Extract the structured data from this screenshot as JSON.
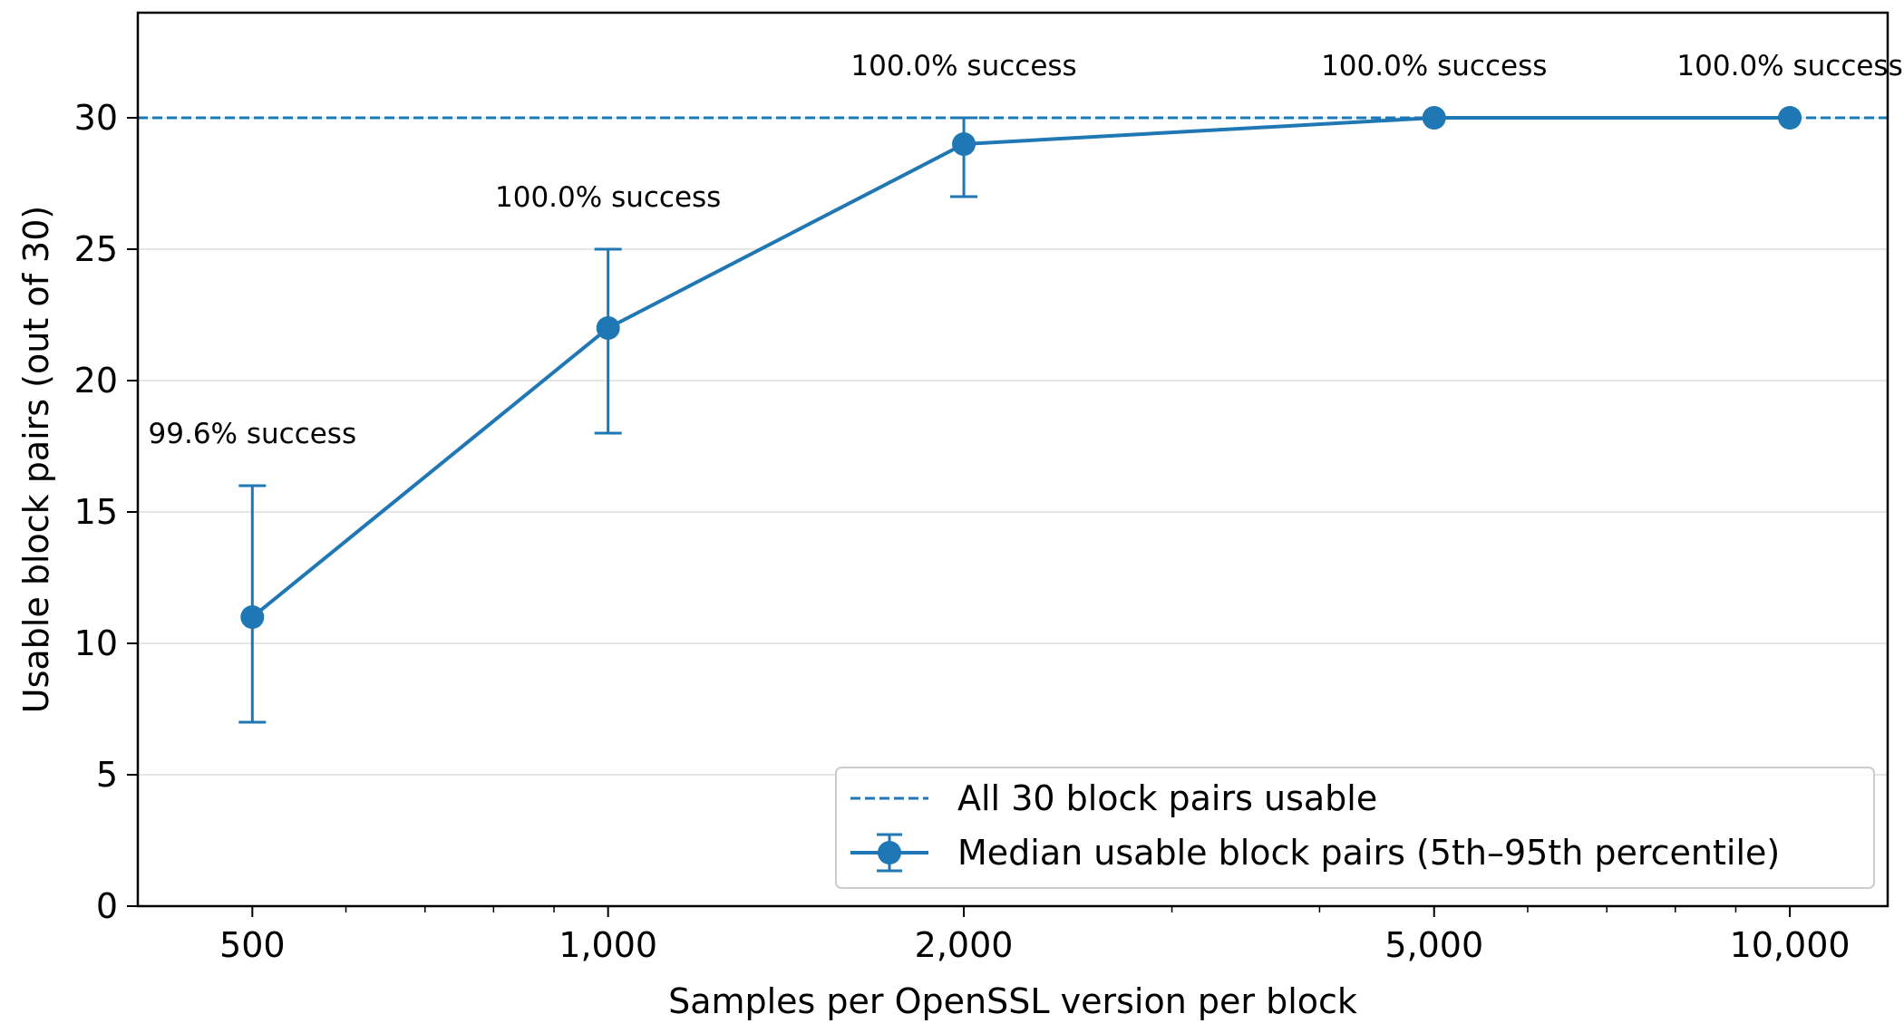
{
  "chart_data": {
    "type": "line",
    "xscale": "log",
    "x": [
      500,
      1000,
      2000,
      5000,
      10000
    ],
    "xticks": [
      500,
      1000,
      2000,
      5000,
      10000
    ],
    "xtick_labels": [
      "500",
      "1,000",
      "2,000",
      "5,000",
      "10,000"
    ],
    "xlim": [
      400,
      12100
    ],
    "ylim": [
      0,
      34
    ],
    "yticks": [
      0,
      5,
      10,
      15,
      20,
      25,
      30
    ],
    "ytick_labels": [
      "0",
      "5",
      "10",
      "15",
      "20",
      "25",
      "30"
    ],
    "xlabel": "Samples per OpenSSL version per block",
    "ylabel": "Usable block pairs (out of 30)",
    "grid": "horizontal",
    "legend_position": "bottom-right",
    "series": [
      {
        "name": "Median usable block pairs (5th–95th percentile)",
        "values": [
          11,
          22,
          29,
          30,
          30
        ],
        "lower": [
          7,
          18,
          27,
          30,
          30
        ],
        "upper": [
          16,
          25,
          30,
          30,
          30
        ],
        "color": "#1f77b4"
      }
    ],
    "reference_line": {
      "name": "All 30 block pairs usable",
      "y": 30,
      "style": "dashed",
      "color": "#1f77b4"
    },
    "annotations": [
      {
        "x": 500,
        "text": "99.6% success"
      },
      {
        "x": 1000,
        "text": "100.0% success"
      },
      {
        "x": 2000,
        "text": "100.0% success"
      },
      {
        "x": 5000,
        "text": "100.0% success"
      },
      {
        "x": 10000,
        "text": "100.0% success"
      }
    ]
  }
}
